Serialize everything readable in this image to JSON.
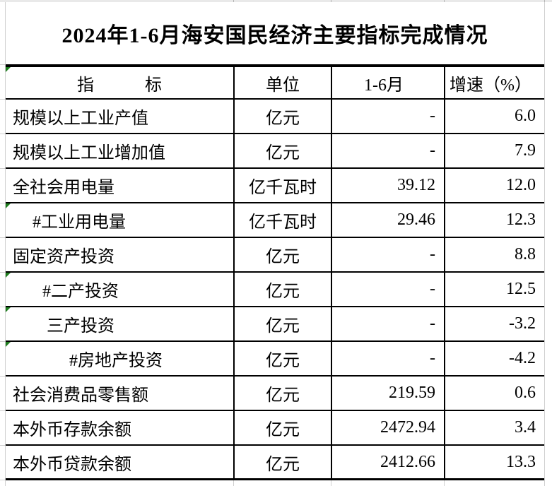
{
  "title": "2024年1-6月海安国民经济主要指标完成情况",
  "table": {
    "columns": [
      "指　　　标",
      "单位",
      "1-6月",
      "增速（%）"
    ],
    "header_flag": true,
    "rows": [
      {
        "indicator": "规模以上工业产值",
        "unit": "亿元",
        "value": "-",
        "growth": "6.0",
        "indent": 0,
        "flag": false
      },
      {
        "indicator": "规模以上工业增加值",
        "unit": "亿元",
        "value": "-",
        "growth": "7.9",
        "indent": 0,
        "flag": false
      },
      {
        "indicator": "全社会用电量",
        "unit": "亿千瓦时",
        "value": "39.12",
        "growth": "12.0",
        "indent": 0,
        "flag": false
      },
      {
        "indicator": "#工业用电量",
        "unit": "亿千瓦时",
        "value": "29.46",
        "growth": "12.3",
        "indent": 28,
        "flag": true
      },
      {
        "indicator": "固定资产投资",
        "unit": "亿元",
        "value": "-",
        "growth": "8.8",
        "indent": 0,
        "flag": false
      },
      {
        "indicator": "#二产投资",
        "unit": "亿元",
        "value": "-",
        "growth": "12.5",
        "indent": 42,
        "flag": true
      },
      {
        "indicator": "三产投资",
        "unit": "亿元",
        "value": "-",
        "growth": "-3.2",
        "indent": 48,
        "flag": true
      },
      {
        "indicator": "#房地产投资",
        "unit": "亿元",
        "value": "-",
        "growth": "-4.2",
        "indent": 80,
        "flag": true
      },
      {
        "indicator": "社会消费品零售额",
        "unit": "亿元",
        "value": "219.59",
        "growth": "0.6",
        "indent": 0,
        "flag": false
      },
      {
        "indicator": "本外币存款余额",
        "unit": "亿元",
        "value": "2472.94",
        "growth": "3.4",
        "indent": 0,
        "flag": false
      },
      {
        "indicator": "本外币贷款余额",
        "unit": "亿元",
        "value": "2412.66",
        "growth": "13.3",
        "indent": 0,
        "flag": false
      }
    ]
  },
  "colors": {
    "border_black": "#000000",
    "flag_green": "#1e7d1e",
    "gridline_gray": "#d0d0d0",
    "strip_gray": "#e9e9e9"
  }
}
